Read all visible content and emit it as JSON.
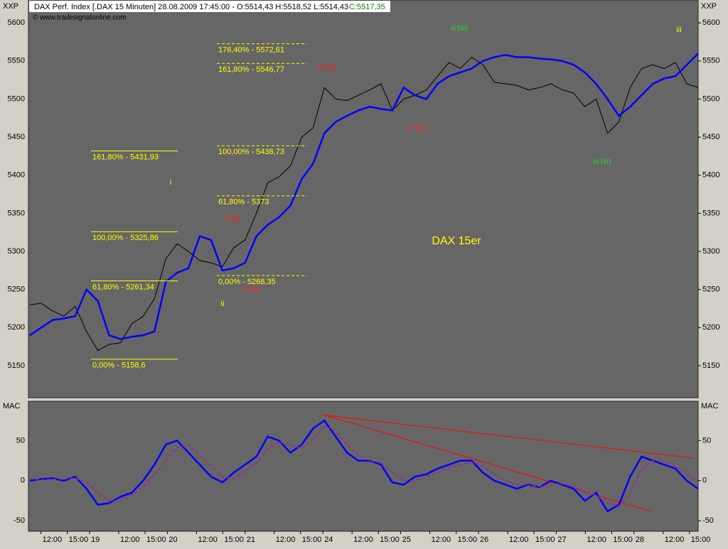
{
  "header": {
    "symbol_text": "DAX Perf. Index [.DAX 15 Minuten] 28.08.2009 17:45:00 - O:5514,43 H:5518,52 L:5514,43",
    "close_text": "C:5517,35",
    "copyright": "© www.tradesignalonline.com",
    "corner_label": "XXP"
  },
  "chart_data": [
    {
      "type": "line",
      "title": "DAX 15er",
      "ylim": [
        5108,
        5630
      ],
      "yticks": [
        5150,
        5200,
        5250,
        5300,
        5350,
        5400,
        5450,
        5500,
        5550,
        5600
      ],
      "series": [
        {
          "color": "#000000",
          "width": 1,
          "values": [
            5230,
            5232,
            5222,
            5215,
            5228,
            5195,
            5170,
            5178,
            5180,
            5205,
            5215,
            5238,
            5290,
            5310,
            5300,
            5288,
            5285,
            5280,
            5305,
            5315,
            5350,
            5390,
            5398,
            5412,
            5450,
            5462,
            5515,
            5500,
            5498,
            5505,
            5512,
            5520,
            5485,
            5500,
            5505,
            5512,
            5530,
            5548,
            5540,
            5555,
            5545,
            5522,
            5520,
            5518,
            5512,
            5515,
            5520,
            5512,
            5508,
            5490,
            5500,
            5455,
            5470,
            5515,
            5540,
            5545,
            5540,
            5548,
            5520,
            5515
          ]
        },
        {
          "color": "#0000ff",
          "width": 2.5,
          "values": [
            5190,
            5200,
            5210,
            5212,
            5215,
            5250,
            5235,
            5190,
            5185,
            5188,
            5190,
            5195,
            5260,
            5272,
            5278,
            5320,
            5315,
            5275,
            5278,
            5285,
            5320,
            5335,
            5345,
            5360,
            5395,
            5415,
            5455,
            5470,
            5478,
            5485,
            5490,
            5487,
            5485,
            5515,
            5505,
            5500,
            5520,
            5530,
            5535,
            5540,
            5550,
            5555,
            5558,
            5555,
            5555,
            5553,
            5552,
            5550,
            5545,
            5535,
            5520,
            5500,
            5478,
            5490,
            5505,
            5520,
            5527,
            5530,
            5545,
            5560
          ]
        }
      ],
      "fib_levels": [
        {
          "label": "161,80% - 5431,93",
          "value": 5431.93
        },
        {
          "label": "100,00% - 5325,86",
          "value": 5325.86
        },
        {
          "label": "61,80% - 5261,34",
          "value": 5261.34
        },
        {
          "label": "0,00% - 5158,6",
          "value": 5158.6
        },
        {
          "label": "176,40% - 5572,61",
          "value": 5572.61
        },
        {
          "label": "161,80% - 5546,77",
          "value": 5546.77
        },
        {
          "label": "100,00% - 5438,73",
          "value": 5438.73
        },
        {
          "label": "61,80% - 5373",
          "value": 5373
        },
        {
          "label": "0,00% - 5268,35",
          "value": 5268.35
        }
      ],
      "wave_labels": [
        {
          "text": "i",
          "color": "#ffff00"
        },
        {
          "text": "ii",
          "color": "#ffff00"
        },
        {
          "text": "i''(iii)",
          "color": "#ff2020"
        },
        {
          "text": "ii''(iii)",
          "color": "#ff2020"
        },
        {
          "text": "iii''(iii)",
          "color": "#ff2020"
        },
        {
          "text": "iv''(iii)",
          "color": "#ff2020"
        },
        {
          "text": "iii'(iii)",
          "color": "#33cc33"
        },
        {
          "text": "iv'(iii)",
          "color": "#33cc33"
        },
        {
          "text": "iii",
          "color": "#ffff00"
        }
      ]
    },
    {
      "type": "line",
      "ylabel": "MAC",
      "ylim": [
        -63,
        99
      ],
      "yticks": [
        -50,
        0,
        50
      ],
      "time_labels": [
        "12:00",
        "15:00",
        "19",
        "12:00",
        "15:00",
        "20",
        "12:00",
        "15:00",
        "21",
        "12:00",
        "15:00",
        "24",
        "12:00",
        "15:00",
        "25",
        "12:00",
        "15:00",
        "26",
        "12:00",
        "15:00",
        "27",
        "12:00",
        "15:00",
        "28",
        "12:00",
        "15:00"
      ],
      "series": [
        {
          "color": "#0000ff",
          "width": 2.5,
          "values": [
            0,
            2,
            3,
            0,
            5,
            -10,
            -30,
            -28,
            -20,
            -15,
            0,
            20,
            45,
            50,
            35,
            20,
            5,
            -2,
            10,
            20,
            30,
            55,
            50,
            35,
            45,
            65,
            75,
            55,
            35,
            25,
            25,
            20,
            -2,
            -5,
            5,
            8,
            15,
            20,
            25,
            25,
            10,
            0,
            -5,
            -10,
            -5,
            -8,
            0,
            -5,
            -10,
            -25,
            -15,
            -38,
            -30,
            5,
            30,
            25,
            20,
            15,
            0,
            -10
          ]
        },
        {
          "color": "#a020a0",
          "width": 1.5,
          "style": "dashed",
          "values": [
            2,
            1,
            2,
            2,
            3,
            -2,
            -15,
            -25,
            -25,
            -18,
            -8,
            8,
            25,
            42,
            45,
            32,
            18,
            5,
            3,
            12,
            22,
            40,
            48,
            45,
            40,
            52,
            68,
            62,
            45,
            32,
            25,
            22,
            10,
            0,
            0,
            5,
            10,
            16,
            20,
            23,
            18,
            8,
            0,
            -5,
            -6,
            -7,
            -4,
            -4,
            -7,
            -15,
            -18,
            -28,
            -32,
            -15,
            15,
            25,
            24,
            18,
            8,
            -2
          ]
        }
      ]
    }
  ]
}
